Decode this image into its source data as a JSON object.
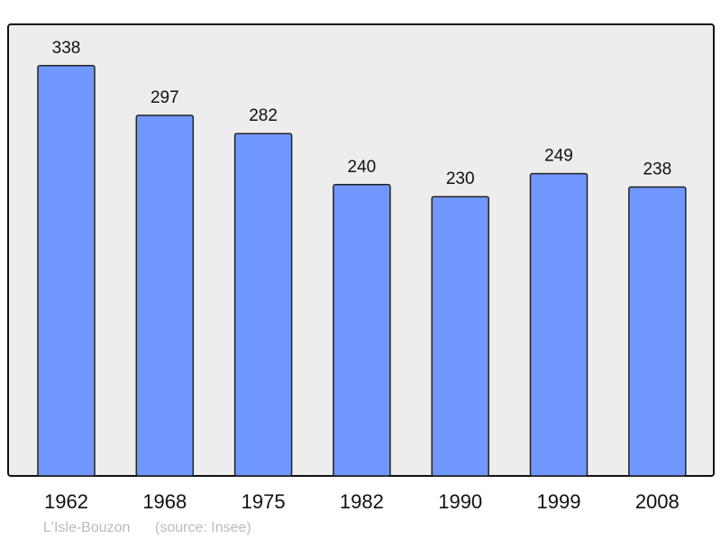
{
  "chart_data": {
    "type": "bar",
    "categories": [
      "1962",
      "1968",
      "1975",
      "1982",
      "1990",
      "1999",
      "2008"
    ],
    "values": [
      338,
      297,
      282,
      240,
      230,
      249,
      238
    ],
    "ylim": [
      0,
      372
    ],
    "grid": false,
    "data_labels": true,
    "colors": {
      "bar": "#7098ff",
      "background": "#ededed",
      "border": "#111111"
    }
  },
  "footer": {
    "place": "L'Isle-Bouzon",
    "source": "(source: Insee)"
  }
}
